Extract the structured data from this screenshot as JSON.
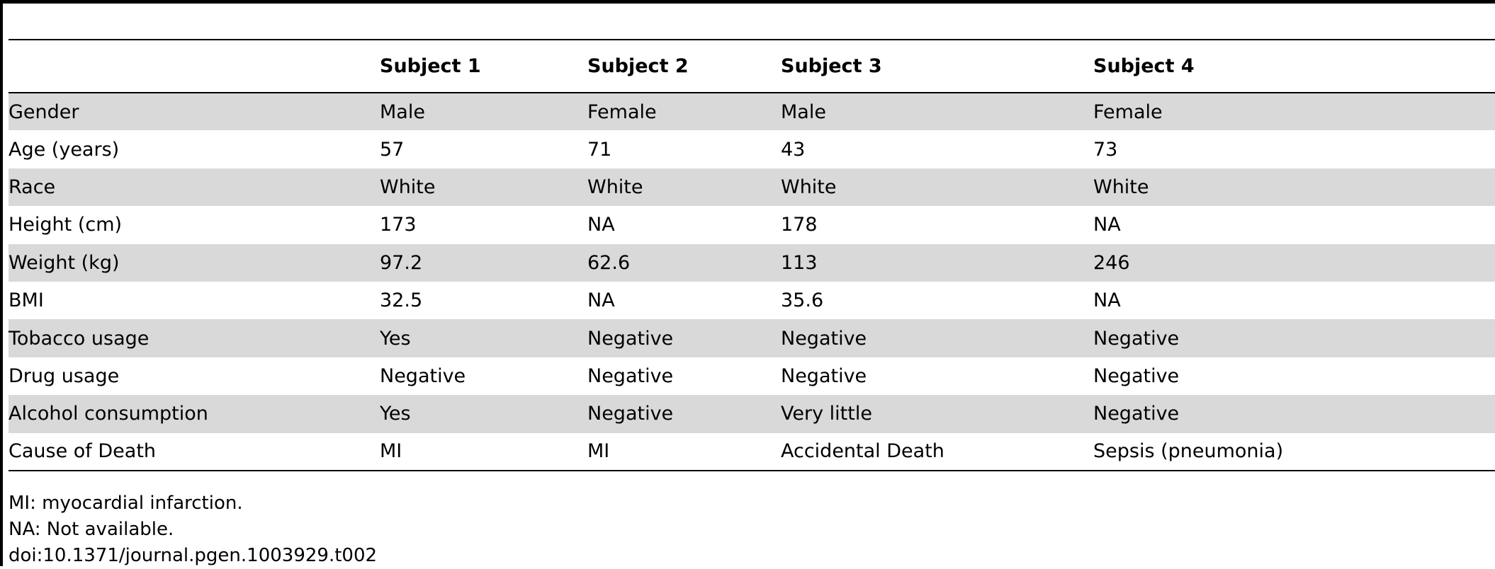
{
  "table": {
    "headers": [
      "",
      "Subject 1",
      "Subject 2",
      "Subject 3",
      "Subject 4"
    ],
    "rows": [
      [
        "Gender",
        "Male",
        "Female",
        "Male",
        "Female"
      ],
      [
        "Age (years)",
        "57",
        "71",
        "43",
        "73"
      ],
      [
        "Race",
        "White",
        "White",
        "White",
        "White"
      ],
      [
        "Height (cm)",
        "173",
        "NA",
        "178",
        "NA"
      ],
      [
        "Weight (kg)",
        "97.2",
        "62.6",
        "113",
        "246"
      ],
      [
        "BMI",
        "32.5",
        "NA",
        "35.6",
        "NA"
      ],
      [
        "Tobacco usage",
        "Yes",
        "Negative",
        "Negative",
        "Negative"
      ],
      [
        "Drug usage",
        "Negative",
        "Negative",
        "Negative",
        "Negative"
      ],
      [
        "Alcohol consumption",
        "Yes",
        "Negative",
        "Very little",
        "Negative"
      ],
      [
        "Cause of Death",
        "MI",
        "MI",
        "Accidental Death",
        "Sepsis (pneumonia)"
      ]
    ]
  },
  "footnotes": [
    "MI: myocardial infarction.",
    "NA: Not available.",
    "doi:10.1371/journal.pgen.1003929.t002"
  ],
  "colors": {
    "shade": "#d9d9d9",
    "rule": "#000000"
  }
}
